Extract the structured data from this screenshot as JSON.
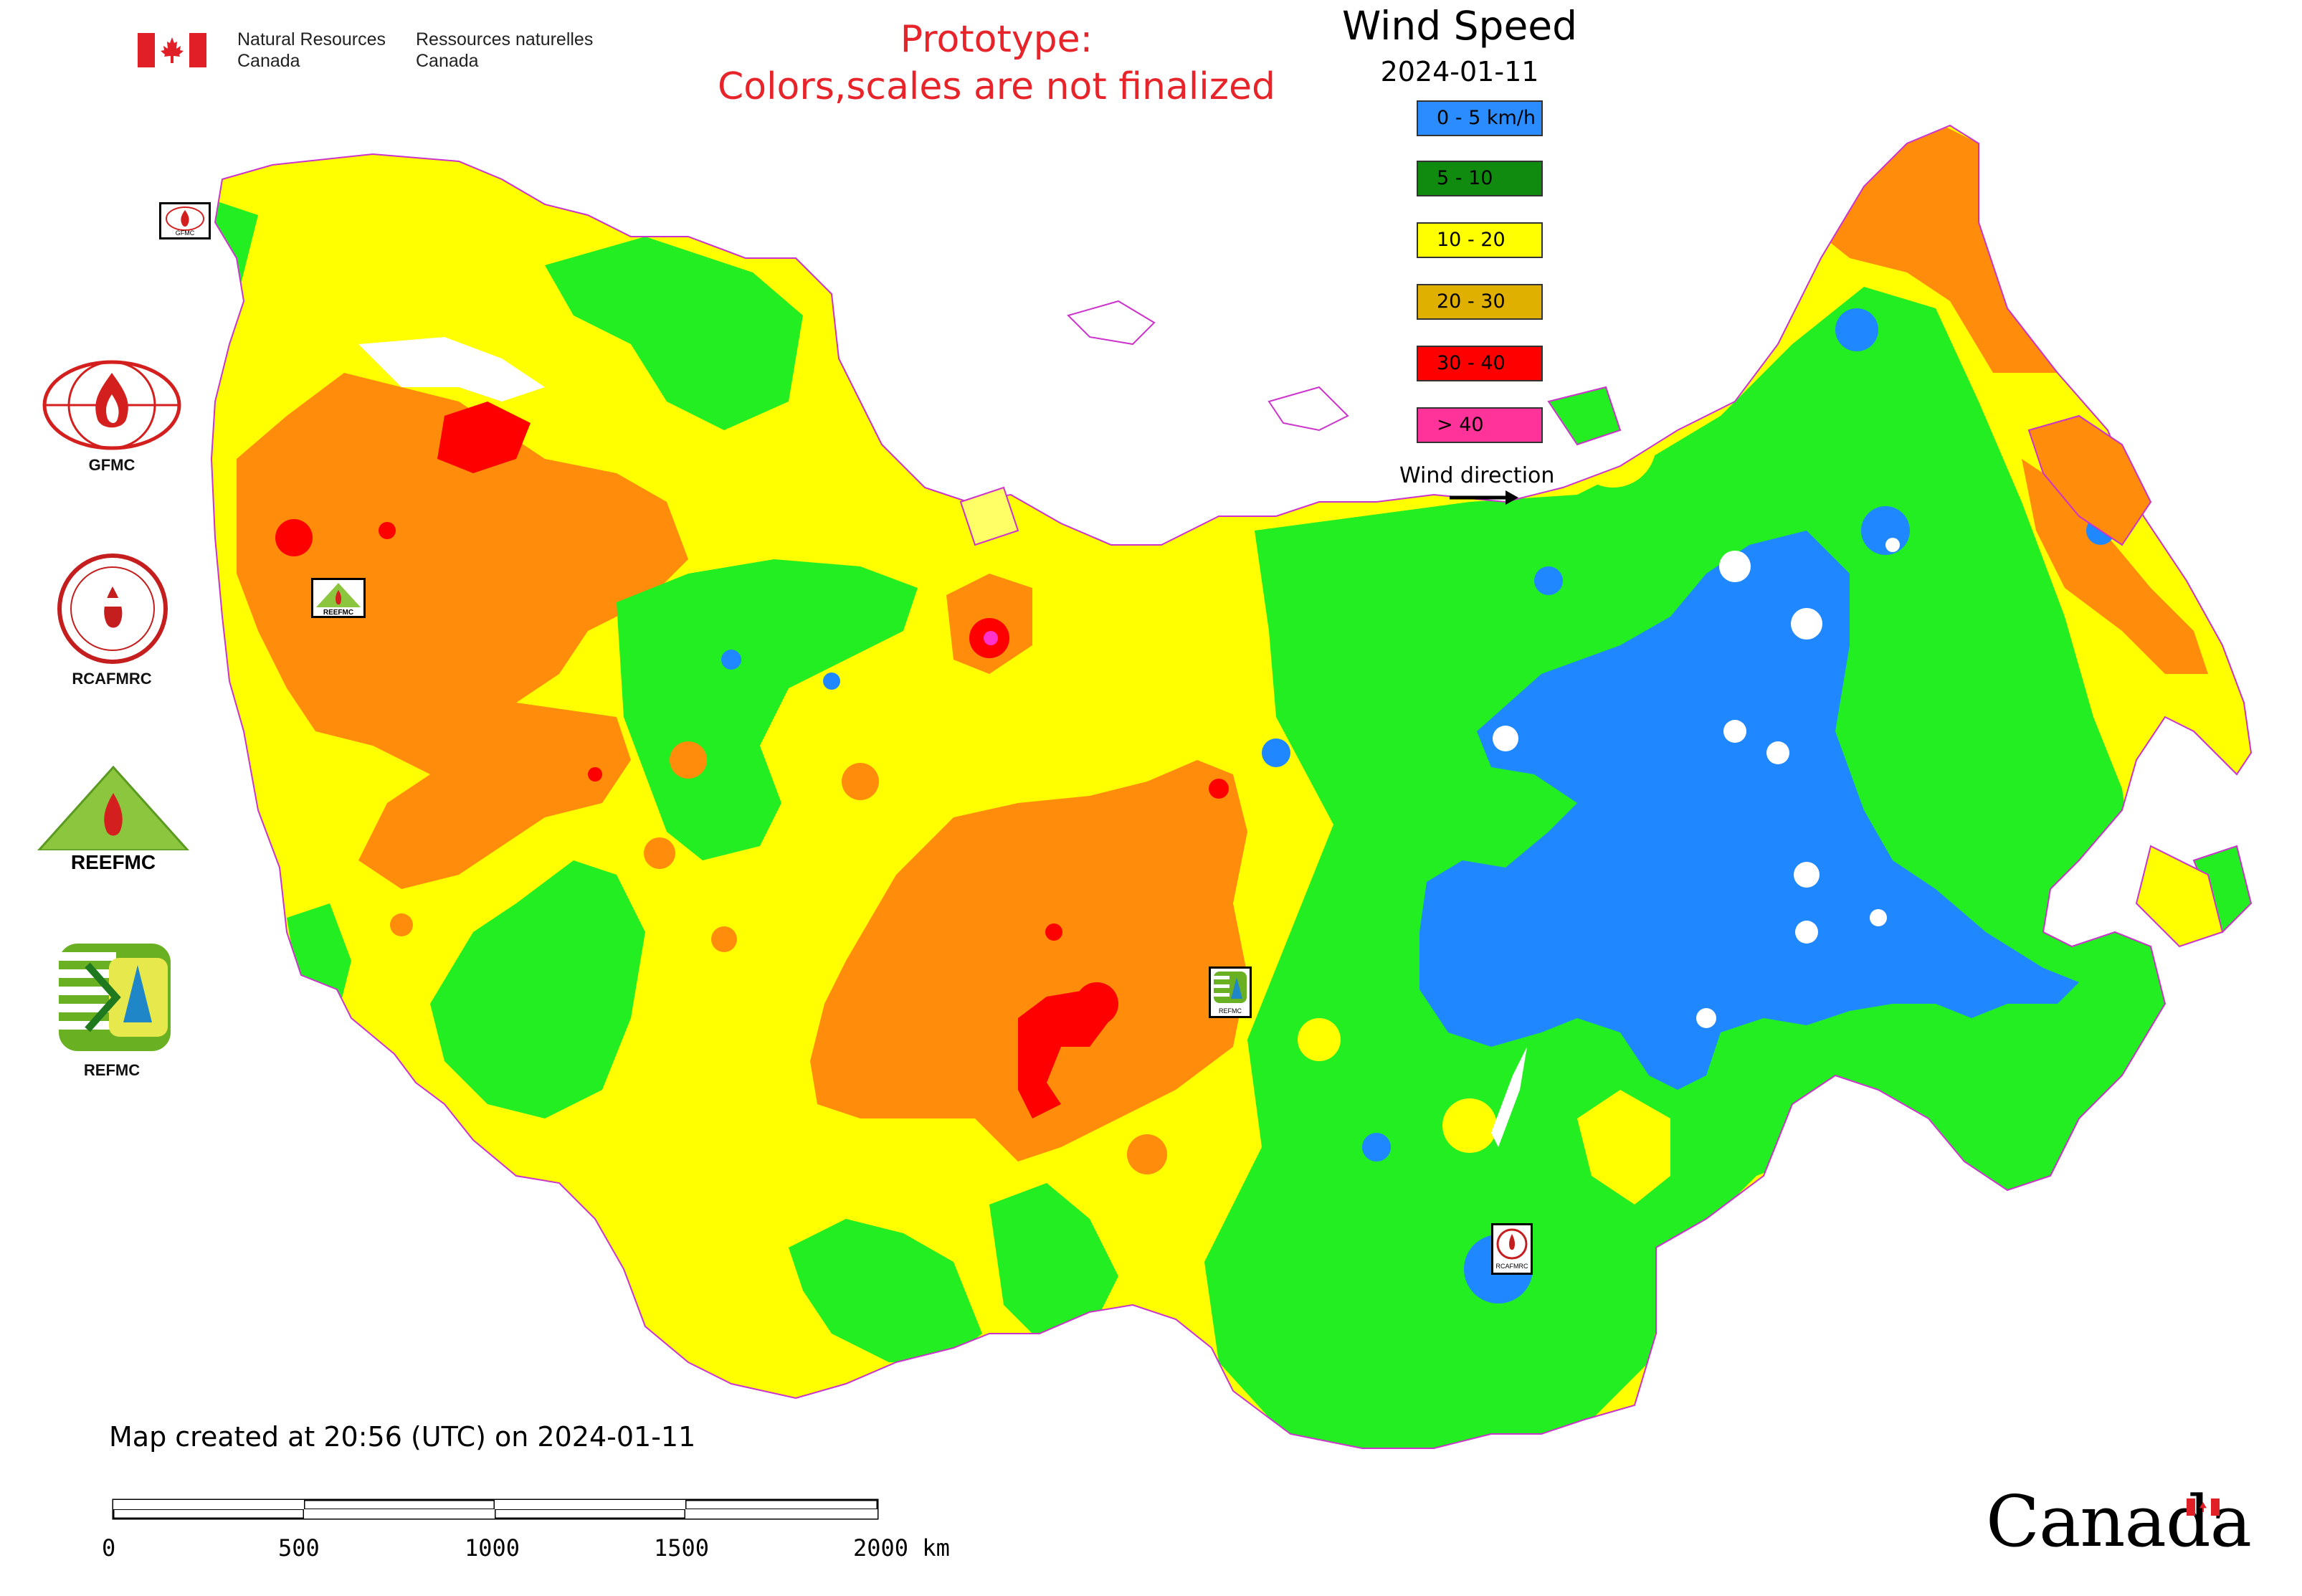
{
  "header": {
    "dept_en_line1": "Natural Resources",
    "dept_en_line2": "Canada",
    "dept_fr_line1": "Ressources naturelles",
    "dept_fr_line2": "Canada"
  },
  "prototype_notice": {
    "line1": "Prototype:",
    "line2": "Colors,scales are not finalized",
    "color": "#e8242b"
  },
  "legend": {
    "title": "Wind Speed",
    "date": "2024-01-11",
    "classes": [
      {
        "label": "0 - 5 km/h",
        "color": "#2b8cff"
      },
      {
        "label": "5 - 10",
        "color": "#118a10"
      },
      {
        "label": "10 - 20",
        "color": "#ffff00"
      },
      {
        "label": "20 - 30",
        "color": "#e0b000"
      },
      {
        "label": "30 - 40",
        "color": "#ff0000"
      },
      {
        "label": "> 40",
        "color": "#ff3399"
      }
    ],
    "wind_direction_label": "Wind direction"
  },
  "organizations": [
    {
      "label": "GFMC",
      "icon": "gfmc-logo-icon"
    },
    {
      "label": "RCAFMRC",
      "icon": "rcafmrc-logo-icon"
    },
    {
      "label": "REEFMC",
      "icon": "reefmc-logo-icon"
    },
    {
      "label": "REFMC",
      "icon": "refmc-logo-icon"
    }
  ],
  "logo_texts": {
    "gfmc_small": "GFMC",
    "reefmc_small": "REEFMC",
    "refmc_small": "REFMC",
    "rcafmrc_small": "RCAFMRC"
  },
  "map_fill_colors": {
    "blue": "#1f87ff",
    "green": "#22ee22",
    "yellow": "#ffff00",
    "orange": "#ff8c0a",
    "red": "#ff0000",
    "magenta": "#ff33cc",
    "light_yellow": "#ffff66"
  },
  "footer": {
    "created": "Map created at 20:56 (UTC) on 2024-01-11",
    "scale_ticks": [
      "0",
      "500",
      "1000",
      "1500",
      "2000 km"
    ],
    "canada_wordmark": "Canada"
  }
}
